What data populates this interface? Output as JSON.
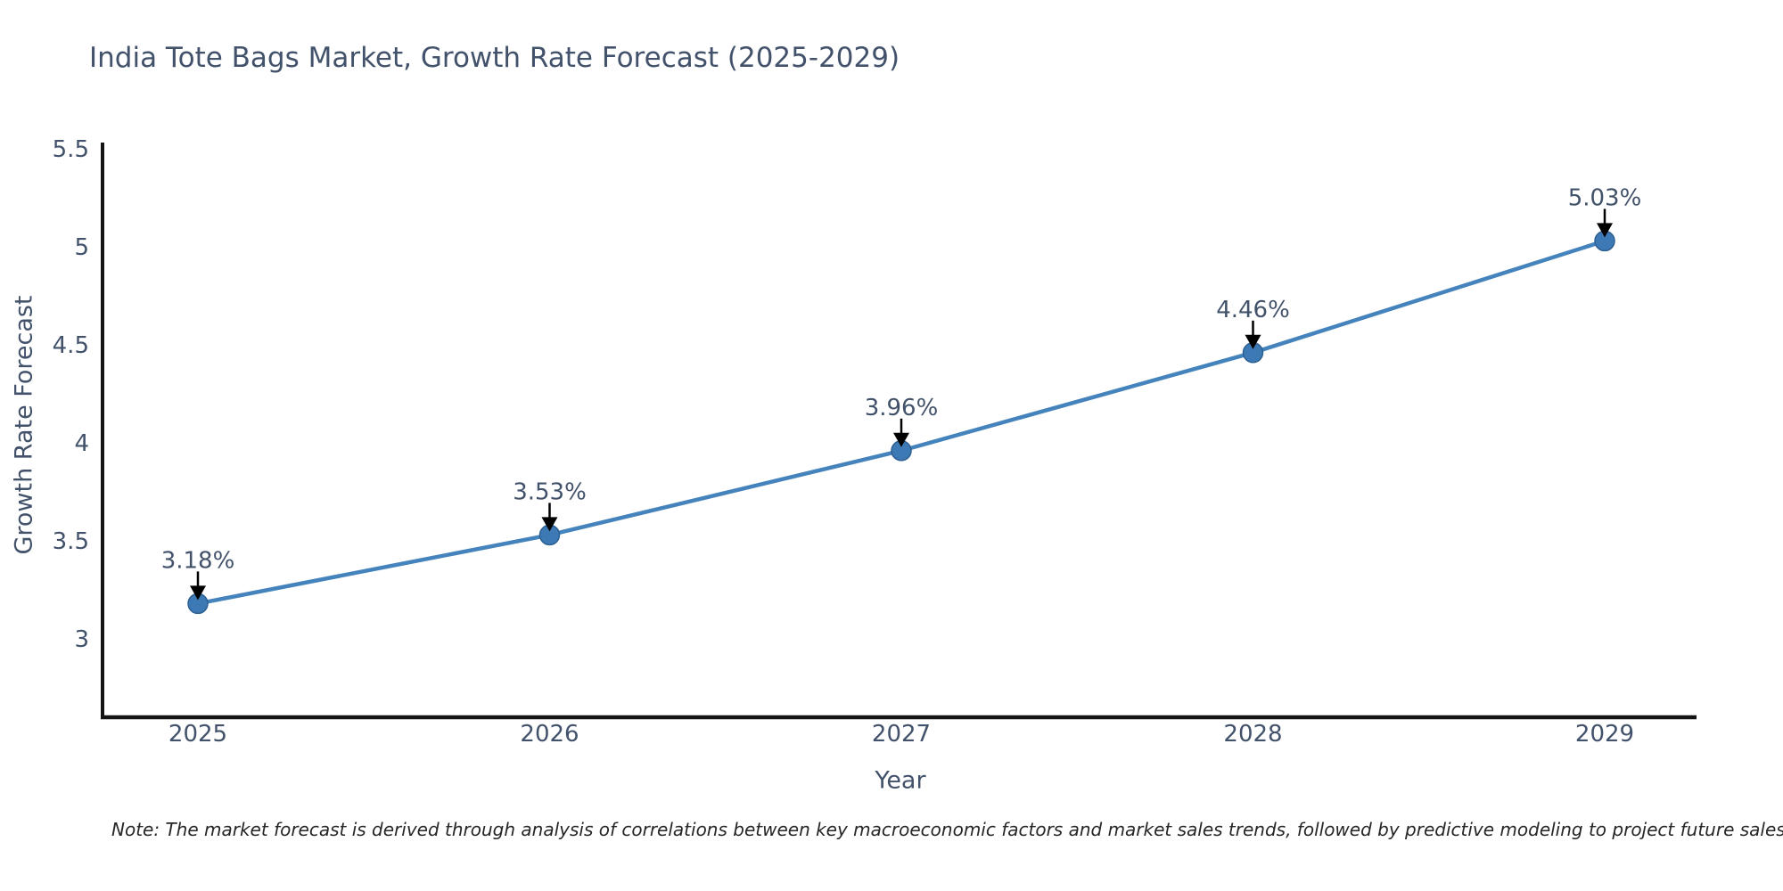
{
  "chart_data": {
    "type": "line",
    "title": "India Tote Bags Market, Growth Rate Forecast (2025-2029)",
    "xlabel": "Year",
    "ylabel": "Growth Rate Forecast",
    "categories": [
      "2025",
      "2026",
      "2027",
      "2028",
      "2029"
    ],
    "series": [
      {
        "name": "Growth Rate Forecast",
        "values": [
          3.18,
          3.53,
          3.96,
          4.46,
          5.03
        ],
        "point_labels": [
          "3.18%",
          "3.53%",
          "3.96%",
          "4.46%",
          "5.03%"
        ]
      }
    ],
    "yticks": [
      3,
      3.5,
      4,
      4.5,
      5,
      5.5
    ],
    "ytick_labels": [
      "3",
      "3.5",
      "4",
      "4.5",
      "5",
      "5.5"
    ],
    "ylim": [
      2.6,
      5.5
    ],
    "grid": false,
    "legend": "none",
    "annotations": "value labels with down arrows above each marker",
    "colors": {
      "line": "#4583bd",
      "marker_fill": "#3d79b5",
      "marker_edge": "#2d5f92",
      "axis_spine": "#141414",
      "text": "#42526b",
      "arrow": "#000000",
      "note_text": "#262626",
      "background": "#ffffff"
    }
  },
  "note": "Note: The market forecast is derived through analysis of correlations between key macroeconomic factors and market sales trends, followed by predictive modeling to project future sales"
}
